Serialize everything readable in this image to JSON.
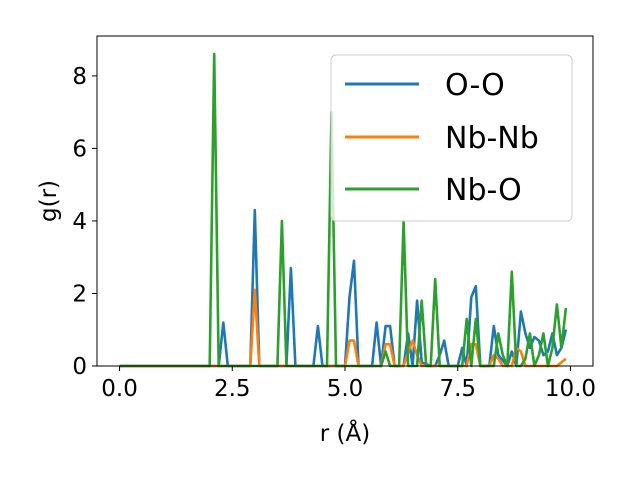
{
  "chart_data": {
    "type": "line",
    "title": "",
    "xlabel": "r (Å)",
    "ylabel": "g(r)",
    "xlim": [
      -0.5,
      10.5
    ],
    "ylim": [
      0,
      9.1
    ],
    "x_ticks": [
      "0.0",
      "2.5",
      "5.0",
      "7.5",
      "10.0"
    ],
    "x_tick_values": [
      0,
      2.5,
      5,
      7.5,
      10
    ],
    "y_ticks": [
      "0",
      "2",
      "4",
      "6",
      "8"
    ],
    "y_tick_values": [
      0,
      2,
      4,
      6,
      8
    ],
    "grid": false,
    "legend": "top-right",
    "series": [
      {
        "name": "O-O",
        "color": "#1f77b4",
        "x": [
          0,
          2.2,
          2.3,
          2.4,
          2.9,
          3.0,
          3.1,
          3.7,
          3.8,
          3.9,
          4.3,
          4.4,
          4.5,
          5.0,
          5.1,
          5.2,
          5.3,
          5.6,
          5.7,
          5.8,
          5.9,
          6.0,
          6.1,
          6.3,
          6.4,
          6.5,
          6.6,
          6.7,
          6.9,
          7.0,
          7.1,
          7.2,
          7.3,
          7.5,
          7.6,
          7.7,
          7.8,
          7.9,
          8.0,
          8.2,
          8.3,
          8.4,
          8.6,
          8.7,
          8.8,
          8.9,
          9.0,
          9.1,
          9.2,
          9.3,
          9.4,
          9.5,
          9.6,
          9.7,
          9.8,
          9.9
        ],
        "y": [
          0,
          0,
          1.2,
          0,
          0,
          4.3,
          0,
          0,
          2.7,
          0,
          0,
          1.1,
          0,
          0,
          1.9,
          2.9,
          0,
          0,
          1.2,
          0,
          1.1,
          1.1,
          0,
          0,
          0.9,
          0,
          1.8,
          0.1,
          0,
          0,
          0.3,
          0.7,
          0,
          0,
          0.5,
          0,
          1.9,
          2.2,
          0,
          0,
          1.1,
          0.3,
          0,
          0.4,
          0,
          1.5,
          0.9,
          0.5,
          0.8,
          0.7,
          0.3,
          0.4,
          0.9,
          0.3,
          0.5,
          1.0
        ]
      },
      {
        "name": "Nb-Nb",
        "color": "#ff7f0e",
        "x": [
          0,
          2.9,
          3.0,
          3.1,
          5.0,
          5.1,
          5.2,
          5.3,
          5.8,
          5.9,
          6.0,
          6.1,
          6.3,
          6.4,
          6.5,
          6.6,
          6.7,
          7.7,
          7.8,
          7.9,
          8.0,
          8.2,
          8.3,
          8.4,
          8.5,
          8.7,
          8.8,
          8.9,
          9.0,
          9.7,
          9.8,
          9.9
        ],
        "y": [
          0,
          0,
          2.1,
          0,
          0,
          0.7,
          0.7,
          0,
          0,
          0.6,
          0.6,
          0,
          0,
          0.4,
          0.7,
          0.3,
          0,
          0,
          0.6,
          0.6,
          0,
          0,
          0.3,
          0.2,
          0,
          0,
          0.5,
          0.4,
          0,
          0,
          0.1,
          0.2
        ]
      },
      {
        "name": "Nb-O",
        "color": "#2ca02c",
        "x": [
          0,
          2.0,
          2.1,
          2.2,
          3.5,
          3.6,
          3.7,
          4.6,
          4.7,
          4.8,
          5.8,
          5.9,
          6.0,
          6.2,
          6.3,
          6.4,
          6.6,
          6.7,
          6.8,
          6.9,
          7.0,
          7.1,
          7.6,
          7.7,
          7.8,
          7.9,
          8.0,
          8.3,
          8.4,
          8.5,
          8.6,
          8.7,
          8.8,
          8.9,
          9.0,
          9.1,
          9.2,
          9.3,
          9.4,
          9.5,
          9.6,
          9.7,
          9.8,
          9.9
        ],
        "y": [
          0,
          0,
          8.6,
          0,
          0,
          4.0,
          0,
          0,
          7.0,
          0,
          0,
          0.4,
          0,
          0,
          4.0,
          0,
          0,
          1.8,
          0,
          0,
          2.4,
          0,
          0,
          1.3,
          0,
          1.3,
          0,
          0,
          0.9,
          0.3,
          0,
          2.6,
          0,
          0,
          0.2,
          0.9,
          0,
          0.3,
          0.9,
          0,
          0.5,
          1.7,
          0.5,
          1.6
        ]
      }
    ]
  }
}
